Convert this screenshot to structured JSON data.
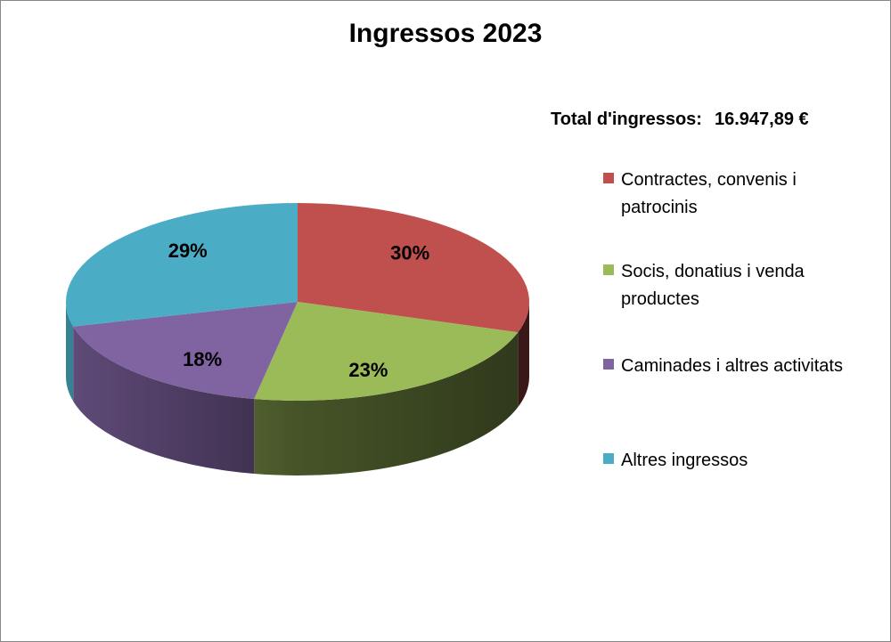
{
  "chart_data": {
    "type": "pie",
    "title": "Ingressos 2023",
    "note_label": "Total d'ingressos:",
    "note_value": "16.947,89 €",
    "slices": [
      {
        "label": "Contractes, convenis i patrocinis",
        "value": 30,
        "display": "30%",
        "color": "#C0504D"
      },
      {
        "label": "Socis, donatius i venda productes",
        "value": 23,
        "display": "23%",
        "color": "#9BBB59"
      },
      {
        "label": "Caminades i altres activitats",
        "value": 18,
        "display": "18%",
        "color": "#8064A2"
      },
      {
        "label": "Altres ingressos",
        "value": 29,
        "display": "29%",
        "color": "#4BACC6"
      }
    ],
    "legend_position": "right",
    "style": "3d-pie"
  }
}
